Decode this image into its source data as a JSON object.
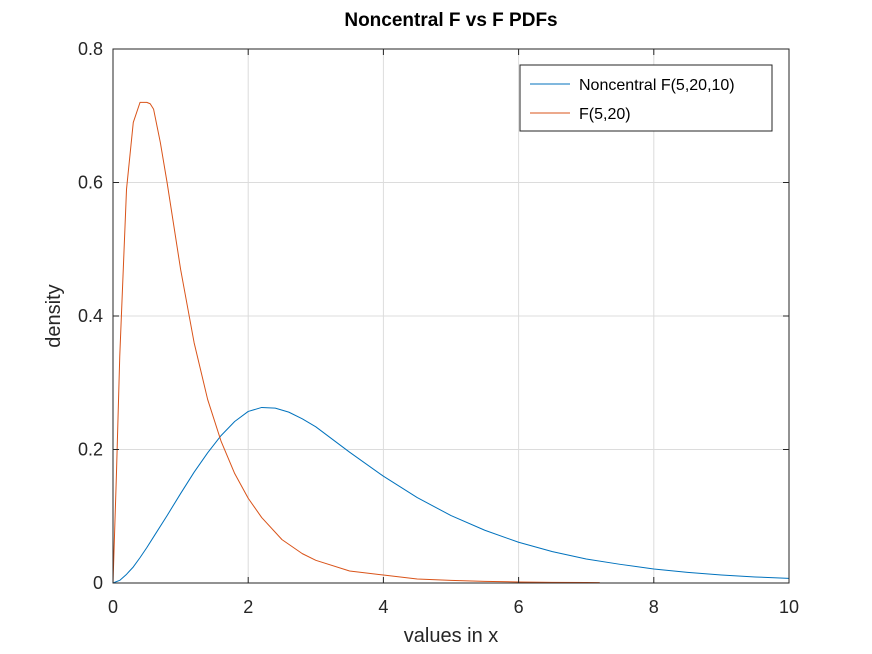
{
  "chart_data": {
    "type": "line",
    "title": "Noncentral F vs F PDFs",
    "xlabel": "values in x",
    "ylabel": "density",
    "xlim": [
      0,
      10
    ],
    "ylim": [
      0,
      0.8
    ],
    "xticks": [
      0,
      2,
      4,
      6,
      8,
      10
    ],
    "xtick_labels": [
      "0",
      "2",
      "4",
      "6",
      "8",
      "10"
    ],
    "yticks": [
      0,
      0.2,
      0.4,
      0.6,
      0.8
    ],
    "ytick_labels": [
      "0",
      "0.2",
      "0.4",
      "0.6",
      "0.8"
    ],
    "grid": true,
    "legend_position": "top-right",
    "series": [
      {
        "name": "Noncentral F(5,20,10)",
        "color": "#0072bd",
        "x": [
          0,
          0.1,
          0.2,
          0.3,
          0.4,
          0.5,
          0.6,
          0.8,
          1.0,
          1.2,
          1.4,
          1.6,
          1.8,
          2.0,
          2.2,
          2.4,
          2.6,
          2.8,
          3.0,
          3.5,
          4.0,
          4.5,
          5.0,
          5.5,
          6.0,
          6.5,
          7.0,
          7.5,
          8.0,
          8.5,
          9.0,
          9.5,
          10.0
        ],
        "y": [
          0,
          0.004,
          0.013,
          0.024,
          0.038,
          0.053,
          0.069,
          0.101,
          0.134,
          0.166,
          0.195,
          0.221,
          0.242,
          0.257,
          0.263,
          0.262,
          0.256,
          0.246,
          0.234,
          0.196,
          0.16,
          0.128,
          0.101,
          0.079,
          0.061,
          0.047,
          0.036,
          0.028,
          0.021,
          0.016,
          0.012,
          0.009,
          0.007
        ]
      },
      {
        "name": "F(5,20)",
        "color": "#d95319",
        "x": [
          0,
          0.05,
          0.1,
          0.2,
          0.3,
          0.4,
          0.5,
          0.55,
          0.6,
          0.7,
          0.8,
          1.0,
          1.2,
          1.4,
          1.6,
          1.8,
          2.0,
          2.2,
          2.5,
          2.8,
          3.0,
          3.5,
          4.0,
          4.5,
          5.0,
          5.5,
          6.0,
          6.5,
          7.0,
          7.2
        ],
        "y": [
          0,
          0.16,
          0.34,
          0.59,
          0.69,
          0.72,
          0.72,
          0.718,
          0.71,
          0.66,
          0.6,
          0.47,
          0.36,
          0.275,
          0.212,
          0.164,
          0.127,
          0.098,
          0.065,
          0.044,
          0.034,
          0.018,
          0.012,
          0.006,
          0.004,
          0.0025,
          0.0015,
          0.001,
          0.0007,
          0.0006
        ]
      }
    ]
  }
}
